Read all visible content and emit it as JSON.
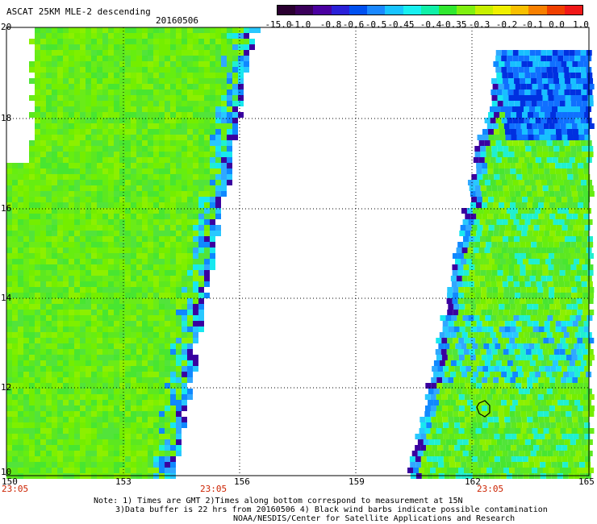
{
  "header": {
    "title": "ASCAT 25KM MLE-2 descending",
    "date": "20160506"
  },
  "colorbar": {
    "labels": [
      "-15.0",
      "-1.0",
      "-0.8",
      "-0.6",
      "-0.5",
      "-0.45",
      "-0.4",
      "-0.35",
      "-0.3",
      "-0.2",
      "-0.1",
      "0.0",
      "1.0"
    ],
    "colors": [
      "#2a0030",
      "#3a005a",
      "#4a00a0",
      "#2a20d8",
      "#0050f0",
      "#1a88ff",
      "#18c4ff",
      "#18f0f0",
      "#10f0a8",
      "#30e830",
      "#80f010",
      "#c8f000",
      "#f0f000",
      "#f8c000",
      "#f88000",
      "#f04000",
      "#f01818"
    ]
  },
  "map": {
    "lat_labels": [
      "20",
      "18",
      "16",
      "14",
      "12",
      "10"
    ],
    "lon_labels": [
      "150",
      "153",
      "156",
      "159",
      "162",
      "165"
    ],
    "time_labels": [
      "23:05",
      "23:05",
      "23:05"
    ]
  },
  "notes": {
    "line1": "Note: 1) Times are GMT 2)Times along bottom correspond to measurement at 15N",
    "line2": "3)Data buffer is 22 hrs from 20160506 4) Black wind barbs indicate possible contamination",
    "line3": "NOAA/NESDIS/Center for Satellite Applications and Research"
  }
}
